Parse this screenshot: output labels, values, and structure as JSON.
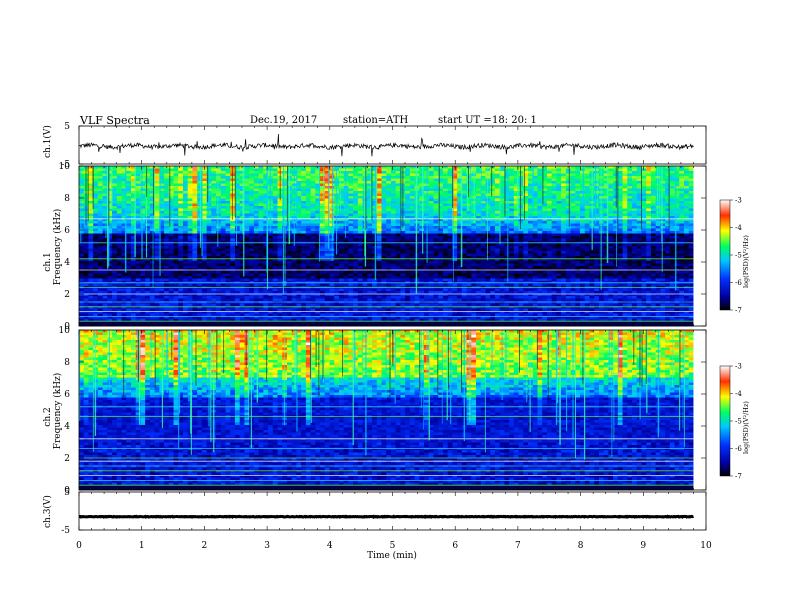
{
  "header": {
    "title": "VLF  Spectra",
    "date": "Dec.19, 2017",
    "station": "station=ATH",
    "start_label": "start  UT  =",
    "start_time": "18: 20: 1"
  },
  "chart_data": [
    {
      "type": "line",
      "name": "ch1-waveform",
      "ylabel": "ch.1(V)",
      "ylim": [
        -5,
        5
      ],
      "yticks": [
        "5",
        "-5"
      ],
      "xlim": [
        0,
        9.8
      ],
      "description_values": "noisy waveform around -0.3 V with amplitude about ±1 V and occasional spikes to ±3 V"
    },
    {
      "type": "heatmap",
      "name": "ch1-spectrogram",
      "ylabel": "Frequency (kHz)",
      "ylabel_prefix": "ch.1",
      "ylim": [
        0,
        10
      ],
      "yticks": [
        "0",
        "2",
        "4",
        "6",
        "8",
        "10"
      ],
      "xlim": [
        0,
        9.8
      ],
      "colorbar": {
        "label": "log(PSD)(V²/Hz)",
        "range": [
          -7,
          -3
        ],
        "ticks": [
          "-3",
          "-4",
          "-5",
          "-6",
          "-7"
        ],
        "colors": [
          "#000000",
          "#0000a0",
          "#0030ff",
          "#00c8ff",
          "#00ff60",
          "#ffff00",
          "#ff3000",
          "#ffffff"
        ]
      }
    },
    {
      "type": "heatmap",
      "name": "ch2-spectrogram",
      "ylabel": "Frequency (kHz)",
      "ylabel_prefix": "ch.2",
      "ylim": [
        0,
        10
      ],
      "yticks": [
        "0",
        "2",
        "4",
        "6",
        "8",
        "10"
      ],
      "xlim": [
        0,
        9.8
      ],
      "colorbar": {
        "label": "log(PSD)(V²/Hz)",
        "range": [
          -7,
          -3
        ],
        "ticks": [
          "-3",
          "-4",
          "-5",
          "-6",
          "-7"
        ],
        "colors": [
          "#000000",
          "#0000a0",
          "#0030ff",
          "#00c8ff",
          "#00ff60",
          "#ffff00",
          "#ff3000",
          "#ffffff"
        ]
      }
    },
    {
      "type": "line",
      "name": "ch3-waveform",
      "ylabel": "ch.3(V)",
      "ylim": [
        -5,
        5
      ],
      "yticks": [
        "5",
        "-5"
      ],
      "xlim": [
        0,
        9.8
      ],
      "description_values": "near-constant line at about -1.5 V"
    }
  ],
  "xaxis": {
    "label": "Time  (min)",
    "ticks": [
      "0",
      "1",
      "2",
      "3",
      "4",
      "5",
      "6",
      "7",
      "8",
      "9",
      "10"
    ],
    "range": [
      0,
      10
    ]
  }
}
